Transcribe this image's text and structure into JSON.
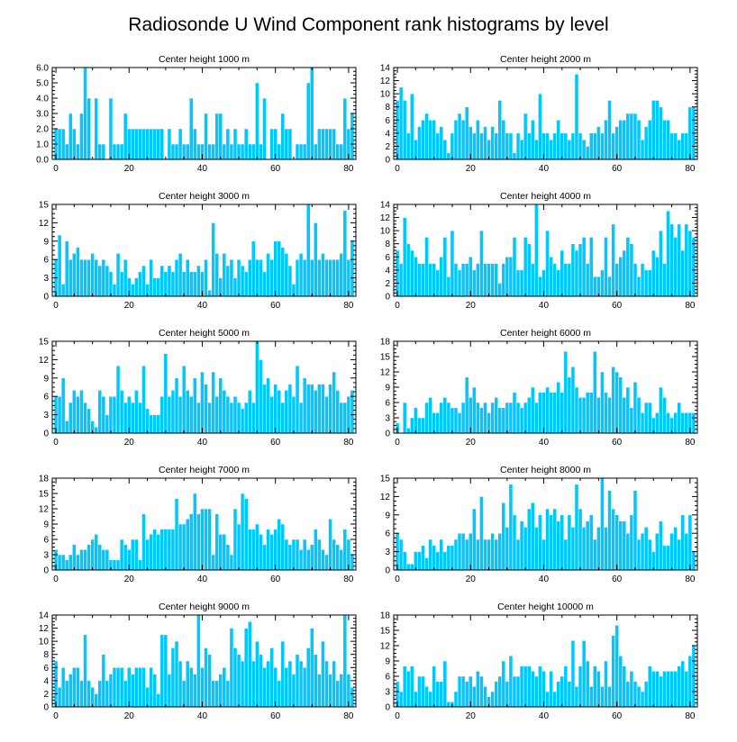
{
  "title": "Radiosonde U Wind Component rank histograms by level",
  "colors": {
    "bar": "#00c8ff",
    "bar_edge": "#ffffff",
    "axis": "#000000",
    "background": "#ffffff"
  },
  "chart_data": [
    {
      "type": "bar",
      "title": "Center height 1000 m",
      "xlim": [
        -1,
        82
      ],
      "ylim": [
        0,
        6
      ],
      "yticks": [
        0,
        1,
        2,
        3,
        4,
        5,
        6
      ],
      "ytick_format": "fixed1",
      "xticks": [
        0,
        20,
        40,
        60,
        80
      ],
      "values": [
        2,
        2,
        2,
        1,
        3,
        2,
        1,
        3,
        6,
        4,
        0,
        4,
        1,
        1,
        0,
        4,
        1,
        1,
        1,
        3,
        2,
        2,
        2,
        2,
        2,
        2,
        2,
        2,
        2,
        2,
        0,
        2,
        1,
        1,
        2,
        1,
        1,
        4,
        2,
        1,
        1,
        3,
        1,
        1,
        3,
        3,
        1,
        2,
        1,
        2,
        1,
        1,
        2,
        1,
        1,
        5,
        1,
        4,
        0,
        2,
        2,
        1,
        3,
        2,
        2,
        0,
        1,
        1,
        1,
        5,
        6,
        1,
        2,
        2,
        2,
        2,
        2,
        1,
        1,
        4,
        2,
        3
      ]
    },
    {
      "type": "bar",
      "title": "Center height 2000 m",
      "xlim": [
        -1,
        82
      ],
      "ylim": [
        0,
        14
      ],
      "yticks": [
        0,
        2,
        4,
        6,
        8,
        10,
        12,
        14
      ],
      "ytick_format": "int",
      "xticks": [
        0,
        20,
        40,
        60,
        80
      ],
      "values": [
        9,
        11,
        9,
        4,
        10,
        3,
        5,
        6,
        7,
        6,
        6,
        4,
        5,
        3,
        1,
        4,
        6,
        7,
        6,
        8,
        5,
        4,
        6,
        4,
        5,
        3,
        5,
        4,
        9,
        6,
        4,
        4,
        1,
        4,
        3,
        7,
        4,
        6,
        3,
        10,
        4,
        4,
        3,
        4,
        6,
        4,
        4,
        3,
        4,
        13,
        4,
        3,
        2,
        4,
        4,
        5,
        4,
        6,
        9,
        4,
        5,
        6,
        6,
        7,
        7,
        7,
        6,
        3,
        5,
        6,
        9,
        9,
        8,
        6,
        6,
        4,
        4,
        3,
        4,
        4,
        8,
        8
      ]
    },
    {
      "type": "bar",
      "title": "Center height 3000 m",
      "xlim": [
        -1,
        82
      ],
      "ylim": [
        0,
        15
      ],
      "yticks": [
        0,
        3,
        6,
        9,
        12,
        15
      ],
      "ytick_format": "int",
      "xticks": [
        0,
        20,
        40,
        60,
        80
      ],
      "values": [
        6,
        10,
        2,
        9,
        6,
        7,
        8,
        6,
        6,
        6,
        7,
        6,
        5,
        6,
        5,
        4,
        2,
        7,
        4,
        6,
        3,
        2,
        3,
        4,
        5,
        2,
        6,
        3,
        3,
        5,
        4,
        5,
        4,
        6,
        7,
        4,
        6,
        4,
        4,
        5,
        4,
        6,
        1,
        12,
        7,
        3,
        7,
        5,
        6,
        3,
        6,
        5,
        4,
        6,
        9,
        6,
        6,
        4,
        7,
        6,
        9,
        9,
        8,
        7,
        5,
        2,
        6,
        7,
        6,
        15,
        6,
        12,
        6,
        7,
        6,
        6,
        6,
        6,
        7,
        14,
        6,
        9
      ]
    },
    {
      "type": "bar",
      "title": "Center height 4000 m",
      "xlim": [
        -1,
        82
      ],
      "ylim": [
        0,
        14
      ],
      "yticks": [
        0,
        2,
        4,
        6,
        8,
        10,
        12,
        14
      ],
      "ytick_format": "int",
      "xticks": [
        0,
        20,
        40,
        60,
        80
      ],
      "values": [
        7,
        5,
        12,
        8,
        7,
        6,
        5,
        5,
        9,
        5,
        5,
        4,
        6,
        9,
        3,
        10,
        5,
        4,
        5,
        5,
        6,
        4,
        5,
        10,
        5,
        5,
        5,
        5,
        2,
        5,
        6,
        6,
        9,
        4,
        4,
        9,
        8,
        5,
        14,
        3,
        4,
        10,
        6,
        5,
        4,
        7,
        5,
        5,
        8,
        7,
        8,
        9,
        5,
        9,
        3,
        3,
        4,
        9,
        3,
        11,
        5,
        6,
        7,
        9,
        8,
        5,
        3,
        5,
        4,
        4,
        7,
        6,
        10,
        5,
        13,
        11,
        9,
        11,
        7,
        11,
        10,
        9
      ]
    },
    {
      "type": "bar",
      "title": "Center height 5000 m",
      "xlim": [
        -1,
        82
      ],
      "ylim": [
        0,
        15
      ],
      "yticks": [
        0,
        3,
        6,
        9,
        12,
        15
      ],
      "ytick_format": "int",
      "xticks": [
        0,
        20,
        40,
        60,
        80
      ],
      "values": [
        6,
        6,
        9,
        2,
        5,
        7,
        6,
        7,
        5,
        4,
        2,
        1,
        7,
        6,
        3,
        6,
        6,
        11,
        7,
        5,
        6,
        5,
        7,
        5,
        11,
        4,
        3,
        3,
        3,
        6,
        13,
        6,
        7,
        9,
        6,
        11,
        7,
        6,
        9,
        5,
        10,
        8,
        5,
        10,
        6,
        9,
        7,
        6,
        5,
        6,
        5,
        4,
        5,
        7,
        5,
        15,
        12,
        8,
        9,
        6,
        8,
        7,
        5,
        7,
        8,
        6,
        11,
        5,
        9,
        8,
        8,
        7,
        8,
        8,
        6,
        8,
        10,
        7,
        5,
        5,
        6,
        7
      ]
    },
    {
      "type": "bar",
      "title": "Center height 6000 m",
      "xlim": [
        -1,
        82
      ],
      "ylim": [
        0,
        18
      ],
      "yticks": [
        0,
        3,
        6,
        9,
        12,
        15,
        18
      ],
      "ytick_format": "int",
      "xticks": [
        0,
        20,
        40,
        60,
        80
      ],
      "values": [
        2,
        0,
        6,
        1,
        3,
        5,
        3,
        3,
        6,
        7,
        4,
        4,
        6,
        7,
        6,
        5,
        5,
        4,
        6,
        11,
        7,
        9,
        6,
        5,
        6,
        4,
        6,
        7,
        5,
        5,
        6,
        6,
        8,
        6,
        5,
        6,
        7,
        9,
        6,
        8,
        8,
        9,
        8,
        8,
        10,
        8,
        16,
        11,
        13,
        9,
        7,
        7,
        8,
        8,
        16,
        7,
        12,
        8,
        7,
        13,
        12,
        11,
        7,
        9,
        5,
        10,
        7,
        4,
        6,
        6,
        3,
        4,
        9,
        7,
        4,
        3,
        4,
        6,
        4,
        4,
        4,
        4
      ]
    },
    {
      "type": "bar",
      "title": "Center height 7000 m",
      "xlim": [
        -1,
        82
      ],
      "ylim": [
        0,
        18
      ],
      "yticks": [
        0,
        3,
        6,
        9,
        12,
        15,
        18
      ],
      "ytick_format": "int",
      "xticks": [
        0,
        20,
        40,
        60,
        80
      ],
      "values": [
        4,
        3,
        3,
        2,
        3,
        5,
        3,
        4,
        4,
        5,
        6,
        7,
        5,
        4,
        4,
        2,
        2,
        2,
        6,
        5,
        4,
        6,
        6,
        2,
        11,
        6,
        7,
        8,
        7,
        8,
        8,
        8,
        8,
        14,
        9,
        9,
        10,
        11,
        15,
        11,
        12,
        12,
        12,
        3,
        11,
        7,
        7,
        5,
        3,
        12,
        9,
        15,
        14,
        8,
        8,
        9,
        7,
        5,
        8,
        7,
        8,
        10,
        9,
        6,
        5,
        6,
        6,
        4,
        6,
        4,
        5,
        8,
        6,
        4,
        3,
        10,
        6,
        5,
        4,
        8,
        6,
        3
      ]
    },
    {
      "type": "bar",
      "title": "Center height 8000 m",
      "xlim": [
        -1,
        82
      ],
      "ylim": [
        0,
        15
      ],
      "yticks": [
        0,
        3,
        6,
        9,
        12,
        15
      ],
      "ytick_format": "int",
      "xticks": [
        0,
        20,
        40,
        60,
        80
      ],
      "values": [
        6,
        5,
        3,
        1,
        1,
        3,
        3,
        4,
        2,
        5,
        4,
        3,
        5,
        3,
        4,
        4,
        5,
        6,
        6,
        5,
        6,
        10,
        5,
        12,
        5,
        5,
        6,
        5,
        6,
        11,
        7,
        14,
        9,
        5,
        8,
        7,
        10,
        11,
        7,
        9,
        5,
        10,
        9,
        10,
        8,
        9,
        5,
        9,
        7,
        14,
        10,
        7,
        8,
        9,
        5,
        7,
        15,
        7,
        13,
        10,
        9,
        8,
        8,
        6,
        9,
        13,
        5,
        6,
        7,
        5,
        3,
        6,
        8,
        4,
        4,
        6,
        7,
        5,
        9,
        6,
        9,
        3
      ]
    },
    {
      "type": "bar",
      "title": "Center height 9000 m",
      "xlim": [
        -1,
        82
      ],
      "ylim": [
        0,
        14
      ],
      "yticks": [
        0,
        2,
        4,
        6,
        8,
        10,
        12,
        14
      ],
      "ytick_format": "int",
      "xticks": [
        0,
        20,
        40,
        60,
        80
      ],
      "values": [
        7,
        3,
        6,
        4,
        5,
        6,
        6,
        4,
        11,
        4,
        3,
        2,
        4,
        8,
        4,
        5,
        6,
        6,
        6,
        4,
        6,
        5,
        6,
        6,
        6,
        3,
        6,
        5,
        2,
        11,
        11,
        5,
        9,
        10,
        7,
        4,
        7,
        6,
        5,
        14,
        6,
        9,
        8,
        4,
        4,
        5,
        6,
        4,
        12,
        9,
        8,
        7,
        12,
        13,
        7,
        10,
        8,
        6,
        7,
        9,
        6,
        4,
        10,
        6,
        7,
        5,
        8,
        7,
        6,
        9,
        12,
        8,
        5,
        10,
        7,
        5,
        7,
        4,
        5,
        14,
        5,
        3
      ]
    },
    {
      "type": "bar",
      "title": "Center height 10000 m",
      "xlim": [
        -1,
        82
      ],
      "ylim": [
        0,
        18
      ],
      "yticks": [
        0,
        3,
        6,
        9,
        12,
        15,
        18
      ],
      "ytick_format": "int",
      "xticks": [
        0,
        20,
        40,
        60,
        80
      ],
      "values": [
        5,
        3,
        8,
        7,
        8,
        3,
        6,
        6,
        4,
        3,
        8,
        5,
        5,
        9,
        1,
        1,
        3,
        6,
        6,
        5,
        6,
        4,
        7,
        6,
        4,
        2,
        3,
        5,
        6,
        9,
        5,
        10,
        6,
        6,
        8,
        8,
        8,
        7,
        6,
        8,
        7,
        3,
        7,
        3,
        5,
        6,
        8,
        5,
        13,
        4,
        8,
        13,
        9,
        4,
        8,
        7,
        4,
        9,
        4,
        14,
        16,
        10,
        8,
        5,
        7,
        5,
        4,
        3,
        5,
        8,
        7,
        7,
        6,
        7,
        7,
        7,
        7,
        8,
        9,
        7,
        10,
        12
      ]
    }
  ]
}
